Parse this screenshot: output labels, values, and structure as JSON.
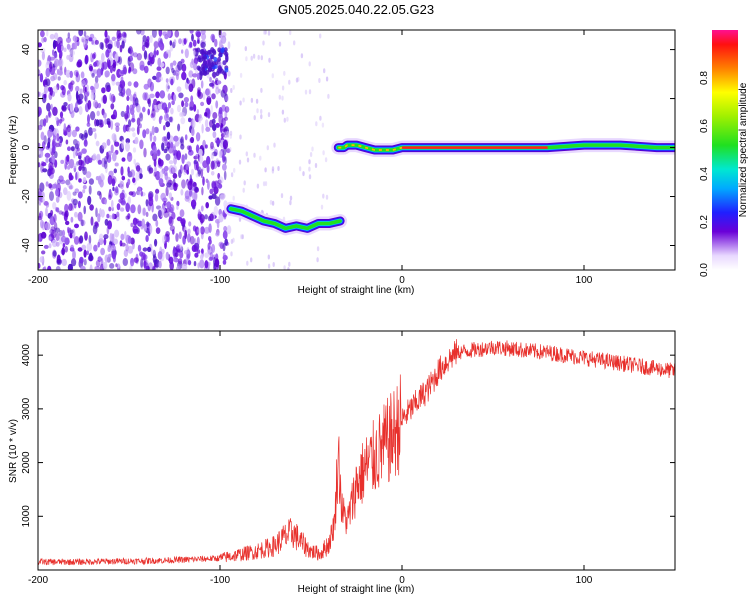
{
  "title": "GN05.2025.040.22.05.G23",
  "chart_data": [
    {
      "type": "heatmap",
      "xlabel": "Height of straight line (km)",
      "ylabel": "Frequency (Hz)",
      "xlim": [
        -200,
        150
      ],
      "ylim": [
        -50,
        48
      ],
      "xticks": [
        -200,
        -100,
        0,
        100
      ],
      "yticks": [
        -40,
        -20,
        0,
        20,
        40
      ],
      "colorbar": {
        "label": "Normalized spectral amplitude",
        "range": [
          0,
          1
        ],
        "ticks": [
          "0.0",
          "0.2",
          "0.4",
          "0.6",
          "0.8"
        ]
      },
      "ridge": [
        {
          "x": -94,
          "y": -25
        },
        {
          "x": -88,
          "y": -26
        },
        {
          "x": -82,
          "y": -28
        },
        {
          "x": -76,
          "y": -30
        },
        {
          "x": -70,
          "y": -31
        },
        {
          "x": -64,
          "y": -33
        },
        {
          "x": -58,
          "y": -32
        },
        {
          "x": -52,
          "y": -33
        },
        {
          "x": -46,
          "y": -31
        },
        {
          "x": -40,
          "y": -31
        },
        {
          "x": -34,
          "y": -30
        },
        {
          "x": -35,
          "y": 0
        },
        {
          "x": -32,
          "y": 0
        },
        {
          "x": -30,
          "y": 1
        },
        {
          "x": -25,
          "y": 1
        },
        {
          "x": -20,
          "y": 0
        },
        {
          "x": -15,
          "y": -1
        },
        {
          "x": -5,
          "y": -1
        },
        {
          "x": 0,
          "y": 0
        },
        {
          "x": 10,
          "y": 0
        },
        {
          "x": 40,
          "y": 0
        },
        {
          "x": 80,
          "y": 0
        },
        {
          "x": 100,
          "y": 1
        },
        {
          "x": 120,
          "y": 1
        },
        {
          "x": 140,
          "y": 0
        },
        {
          "x": 150,
          "y": 0
        }
      ]
    },
    {
      "type": "line",
      "xlabel": "Height of straight line (km)",
      "ylabel": "SNR (10 * v/v)",
      "xlim": [
        -200,
        150
      ],
      "ylim": [
        0,
        4450
      ],
      "xticks": [
        -200,
        -100,
        0,
        100
      ],
      "yticks": [
        1000,
        2000,
        3000,
        4000
      ],
      "series": [
        {
          "color": "#e8302c",
          "x": [
            -200,
            -180,
            -160,
            -140,
            -120,
            -100,
            -90,
            -80,
            -70,
            -65,
            -60,
            -55,
            -50,
            -45,
            -40,
            -37,
            -35,
            -33,
            -30,
            -27,
            -25,
            -20,
            -15,
            -10,
            -5,
            0,
            5,
            10,
            15,
            20,
            25,
            30,
            40,
            50,
            60,
            70,
            80,
            90,
            100,
            110,
            120,
            130,
            140,
            150
          ],
          "y": [
            150,
            150,
            160,
            170,
            190,
            220,
            280,
            350,
            450,
            600,
            700,
            500,
            350,
            300,
            500,
            900,
            2200,
            1100,
            900,
            1300,
            1600,
            1900,
            2100,
            2300,
            2500,
            2800,
            3000,
            3200,
            3400,
            3700,
            3900,
            4050,
            4100,
            4150,
            4120,
            4080,
            4050,
            4000,
            3950,
            3900,
            3850,
            3800,
            3750,
            3700
          ]
        }
      ]
    }
  ]
}
